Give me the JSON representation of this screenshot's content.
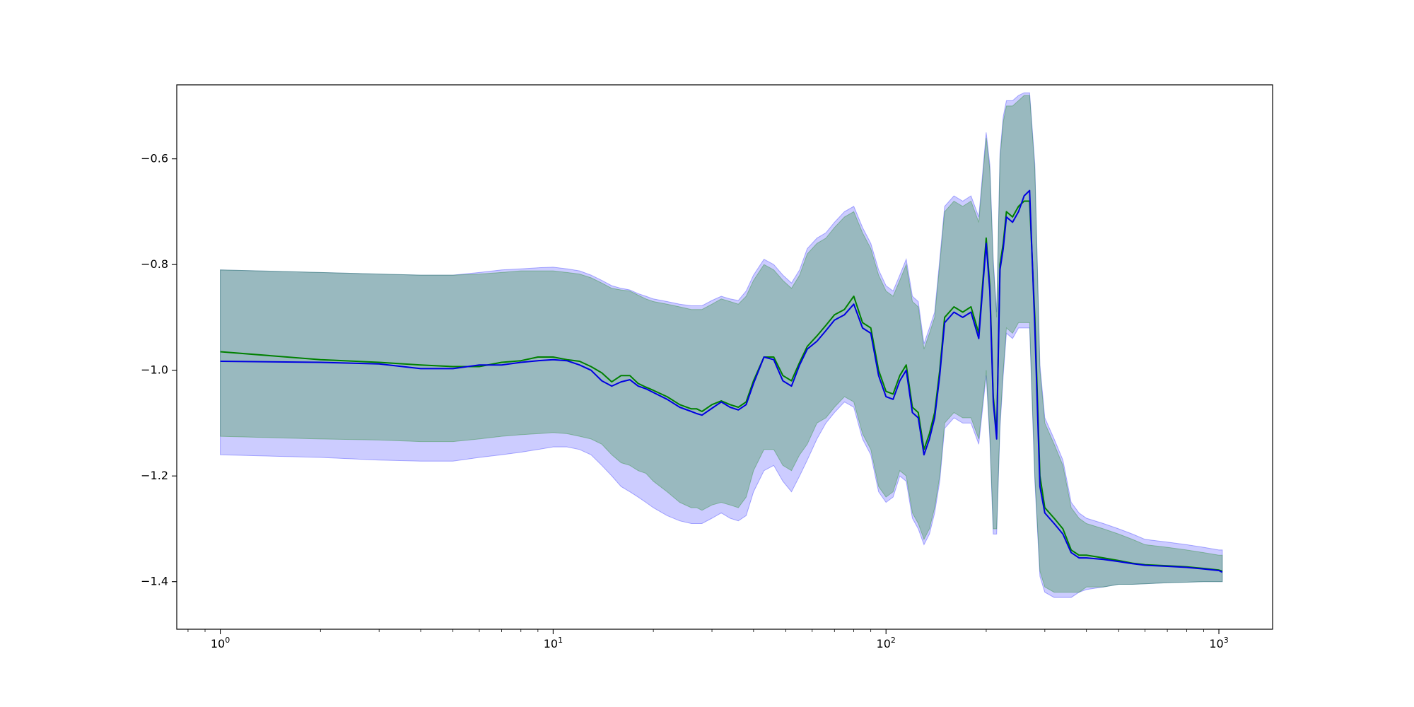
{
  "chart_data": {
    "type": "line",
    "title": "",
    "xlabel": "",
    "ylabel": "",
    "xscale": "log",
    "xlim": [
      0.74,
      1450
    ],
    "ylim": [
      -1.49,
      -0.46
    ],
    "grid": false,
    "legend": "none",
    "x_ticks": [
      {
        "base": "10",
        "exp": "0",
        "value": 1
      },
      {
        "base": "10",
        "exp": "1",
        "value": 10
      },
      {
        "base": "10",
        "exp": "2",
        "value": 100
      },
      {
        "base": "10",
        "exp": "3",
        "value": 1000
      }
    ],
    "y_ticks": [
      {
        "label": "−0.6",
        "value": -0.6
      },
      {
        "label": "−0.8",
        "value": -0.8
      },
      {
        "label": "−1.0",
        "value": -1.0
      },
      {
        "label": "−1.2",
        "value": -1.2
      },
      {
        "label": "−1.4",
        "value": -1.4
      }
    ],
    "x": [
      1,
      2,
      3,
      4,
      5,
      6,
      7,
      8,
      9,
      10,
      11,
      12,
      13,
      14,
      15,
      16,
      17,
      18,
      19,
      20,
      22,
      24,
      26,
      27,
      28,
      30,
      32,
      34,
      36,
      38,
      40,
      43,
      46,
      49,
      52,
      55,
      58,
      62,
      66,
      70,
      75,
      80,
      85,
      90,
      95,
      100,
      105,
      110,
      115,
      120,
      125,
      130,
      135,
      140,
      145,
      150,
      160,
      170,
      180,
      190,
      200,
      205,
      210,
      215,
      220,
      225,
      230,
      240,
      250,
      260,
      270,
      280,
      290,
      300,
      320,
      340,
      360,
      380,
      400,
      450,
      500,
      550,
      600,
      700,
      800,
      900,
      1000,
      1024
    ],
    "series": [
      {
        "color": "#008000",
        "fill_color": "#008000",
        "y": [
          -0.965,
          -0.98,
          -0.985,
          -0.99,
          -0.993,
          -0.993,
          -0.985,
          -0.982,
          -0.975,
          -0.975,
          -0.98,
          -0.983,
          -0.993,
          -1.005,
          -1.022,
          -1.01,
          -1.01,
          -1.025,
          -1.032,
          -1.038,
          -1.05,
          -1.065,
          -1.073,
          -1.073,
          -1.078,
          -1.065,
          -1.058,
          -1.065,
          -1.07,
          -1.06,
          -1.02,
          -0.975,
          -0.975,
          -1.01,
          -1.02,
          -0.985,
          -0.955,
          -0.935,
          -0.915,
          -0.895,
          -0.885,
          -0.86,
          -0.91,
          -0.92,
          -1.0,
          -1.04,
          -1.045,
          -1.01,
          -0.99,
          -1.07,
          -1.08,
          -1.15,
          -1.12,
          -1.08,
          -1.0,
          -0.9,
          -0.88,
          -0.89,
          -0.88,
          -0.93,
          -0.75,
          -0.84,
          -1.05,
          -1.12,
          -0.8,
          -0.76,
          -0.7,
          -0.71,
          -0.69,
          -0.68,
          -0.68,
          -0.9,
          -1.2,
          -1.26,
          -1.28,
          -1.3,
          -1.34,
          -1.35,
          -1.35,
          -1.355,
          -1.36,
          -1.365,
          -1.368,
          -1.37,
          -1.372,
          -1.375,
          -1.378,
          -1.38
        ],
        "y_lower": [
          -1.125,
          -1.13,
          -1.132,
          -1.135,
          -1.135,
          -1.13,
          -1.125,
          -1.122,
          -1.12,
          -1.118,
          -1.12,
          -1.125,
          -1.13,
          -1.14,
          -1.16,
          -1.175,
          -1.18,
          -1.19,
          -1.195,
          -1.21,
          -1.23,
          -1.25,
          -1.26,
          -1.26,
          -1.265,
          -1.255,
          -1.25,
          -1.255,
          -1.26,
          -1.24,
          -1.19,
          -1.15,
          -1.15,
          -1.18,
          -1.19,
          -1.16,
          -1.14,
          -1.1,
          -1.09,
          -1.07,
          -1.05,
          -1.06,
          -1.12,
          -1.15,
          -1.22,
          -1.24,
          -1.23,
          -1.19,
          -1.2,
          -1.27,
          -1.29,
          -1.32,
          -1.3,
          -1.26,
          -1.2,
          -1.1,
          -1.08,
          -1.09,
          -1.09,
          -1.13,
          -1.0,
          -1.12,
          -1.3,
          -1.3,
          -1.1,
          -1.0,
          -0.92,
          -0.93,
          -0.91,
          -0.91,
          -0.91,
          -1.2,
          -1.38,
          -1.41,
          -1.42,
          -1.42,
          -1.42,
          -1.42,
          -1.41,
          -1.41,
          -1.405,
          -1.405,
          -1.404,
          -1.402,
          -1.401,
          -1.4,
          -1.4,
          -1.4
        ],
        "y_upper": [
          -0.81,
          -0.815,
          -0.818,
          -0.82,
          -0.82,
          -0.818,
          -0.815,
          -0.812,
          -0.812,
          -0.812,
          -0.815,
          -0.818,
          -0.825,
          -0.835,
          -0.845,
          -0.848,
          -0.85,
          -0.858,
          -0.865,
          -0.87,
          -0.875,
          -0.88,
          -0.885,
          -0.885,
          -0.885,
          -0.875,
          -0.865,
          -0.87,
          -0.875,
          -0.86,
          -0.83,
          -0.8,
          -0.81,
          -0.83,
          -0.845,
          -0.82,
          -0.78,
          -0.76,
          -0.75,
          -0.73,
          -0.71,
          -0.7,
          -0.74,
          -0.77,
          -0.82,
          -0.85,
          -0.86,
          -0.83,
          -0.8,
          -0.87,
          -0.88,
          -0.96,
          -0.93,
          -0.9,
          -0.8,
          -0.7,
          -0.68,
          -0.69,
          -0.68,
          -0.72,
          -0.56,
          -0.62,
          -0.8,
          -0.9,
          -0.6,
          -0.53,
          -0.5,
          -0.5,
          -0.49,
          -0.48,
          -0.48,
          -0.62,
          -1.0,
          -1.1,
          -1.14,
          -1.18,
          -1.26,
          -1.28,
          -1.29,
          -1.3,
          -1.31,
          -1.32,
          -1.33,
          -1.335,
          -1.34,
          -1.345,
          -1.35,
          -1.35
        ]
      },
      {
        "color": "#0000e0",
        "fill_color": "#0000ff",
        "y": [
          -0.983,
          -0.985,
          -0.988,
          -0.997,
          -0.997,
          -0.99,
          -0.99,
          -0.985,
          -0.982,
          -0.98,
          -0.982,
          -0.99,
          -1.0,
          -1.02,
          -1.03,
          -1.022,
          -1.018,
          -1.03,
          -1.035,
          -1.042,
          -1.055,
          -1.07,
          -1.078,
          -1.082,
          -1.085,
          -1.072,
          -1.06,
          -1.07,
          -1.075,
          -1.065,
          -1.025,
          -0.975,
          -0.98,
          -1.02,
          -1.03,
          -0.99,
          -0.96,
          -0.945,
          -0.925,
          -0.905,
          -0.895,
          -0.875,
          -0.92,
          -0.93,
          -1.01,
          -1.05,
          -1.055,
          -1.02,
          -1.0,
          -1.08,
          -1.09,
          -1.16,
          -1.13,
          -1.09,
          -1.01,
          -0.91,
          -0.89,
          -0.9,
          -0.89,
          -0.94,
          -0.76,
          -0.85,
          -1.06,
          -1.13,
          -0.81,
          -0.77,
          -0.71,
          -0.72,
          -0.7,
          -0.67,
          -0.66,
          -0.92,
          -1.22,
          -1.27,
          -1.29,
          -1.31,
          -1.345,
          -1.355,
          -1.355,
          -1.358,
          -1.362,
          -1.366,
          -1.369,
          -1.371,
          -1.373,
          -1.376,
          -1.379,
          -1.382
        ],
        "y_lower": [
          -1.16,
          -1.165,
          -1.17,
          -1.172,
          -1.172,
          -1.165,
          -1.16,
          -1.155,
          -1.15,
          -1.145,
          -1.145,
          -1.15,
          -1.16,
          -1.18,
          -1.2,
          -1.22,
          -1.23,
          -1.24,
          -1.25,
          -1.26,
          -1.275,
          -1.285,
          -1.29,
          -1.29,
          -1.29,
          -1.28,
          -1.27,
          -1.28,
          -1.285,
          -1.275,
          -1.23,
          -1.19,
          -1.18,
          -1.21,
          -1.23,
          -1.2,
          -1.17,
          -1.13,
          -1.1,
          -1.08,
          -1.06,
          -1.07,
          -1.13,
          -1.16,
          -1.23,
          -1.25,
          -1.24,
          -1.2,
          -1.21,
          -1.28,
          -1.3,
          -1.33,
          -1.31,
          -1.27,
          -1.21,
          -1.11,
          -1.09,
          -1.1,
          -1.1,
          -1.14,
          -1.01,
          -1.13,
          -1.31,
          -1.31,
          -1.11,
          -1.01,
          -0.93,
          -0.94,
          -0.92,
          -0.92,
          -0.92,
          -1.21,
          -1.39,
          -1.42,
          -1.43,
          -1.43,
          -1.43,
          -1.42,
          -1.415,
          -1.41,
          -1.405,
          -1.405,
          -1.404,
          -1.402,
          -1.401,
          -1.4,
          -1.4,
          -1.4
        ],
        "y_upper": [
          -0.81,
          -0.815,
          -0.818,
          -0.82,
          -0.82,
          -0.815,
          -0.81,
          -0.808,
          -0.806,
          -0.805,
          -0.808,
          -0.812,
          -0.82,
          -0.83,
          -0.84,
          -0.845,
          -0.848,
          -0.855,
          -0.86,
          -0.865,
          -0.87,
          -0.875,
          -0.878,
          -0.878,
          -0.878,
          -0.868,
          -0.86,
          -0.865,
          -0.868,
          -0.85,
          -0.82,
          -0.79,
          -0.8,
          -0.82,
          -0.835,
          -0.81,
          -0.77,
          -0.75,
          -0.74,
          -0.72,
          -0.7,
          -0.69,
          -0.73,
          -0.76,
          -0.81,
          -0.84,
          -0.85,
          -0.82,
          -0.79,
          -0.86,
          -0.87,
          -0.95,
          -0.92,
          -0.89,
          -0.79,
          -0.69,
          -0.67,
          -0.68,
          -0.67,
          -0.71,
          -0.55,
          -0.61,
          -0.79,
          -0.89,
          -0.59,
          -0.52,
          -0.49,
          -0.49,
          -0.48,
          -0.475,
          -0.475,
          -0.61,
          -0.99,
          -1.09,
          -1.13,
          -1.17,
          -1.25,
          -1.27,
          -1.28,
          -1.29,
          -1.3,
          -1.31,
          -1.32,
          -1.325,
          -1.33,
          -1.335,
          -1.34,
          -1.34
        ]
      }
    ]
  }
}
